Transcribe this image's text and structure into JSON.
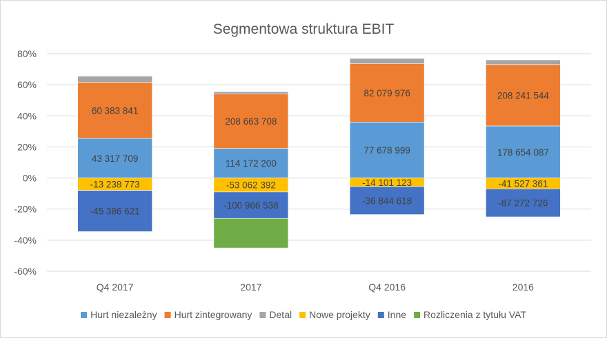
{
  "chart_data": {
    "type": "bar",
    "stacked": true,
    "title": "Segmentowa struktura EBIT",
    "xlabel": "",
    "ylabel": "",
    "categories": [
      "Q4 2017",
      "2017",
      "Q4 2016",
      "2016"
    ],
    "y_ticks": [
      "80%",
      "60%",
      "40%",
      "20%",
      "0%",
      "-20%",
      "-40%",
      "-60%"
    ],
    "ylim": [
      -0.6,
      0.8
    ],
    "grid": true,
    "legend_position": "bottom",
    "series": [
      {
        "name": "Hurt niezależny",
        "color": "#5B9BD5",
        "values": [
          0.255,
          0.19,
          0.36,
          0.335
        ],
        "labels": [
          "43 317 709",
          "114 172 200",
          "77 678 999",
          "178 654 087"
        ]
      },
      {
        "name": "Hurt zintegrowany",
        "color": "#ED7D31",
        "values": [
          0.36,
          0.35,
          0.375,
          0.395
        ],
        "labels": [
          "60 383 841",
          "208 663 708",
          "82 079 976",
          "208 241 544"
        ]
      },
      {
        "name": "Detal",
        "color": "#A5A5A5",
        "values": [
          0.04,
          0.015,
          0.035,
          0.03
        ],
        "labels": [
          "",
          "",
          "",
          ""
        ]
      },
      {
        "name": "Nowe projekty",
        "color": "#FFC000",
        "values": [
          -0.08,
          -0.09,
          -0.055,
          -0.07
        ],
        "labels": [
          "-13 238 773",
          "-53 062 392",
          "-14 101 123",
          "-41 527 361"
        ]
      },
      {
        "name": "Inne",
        "color": "#4472C4",
        "values": [
          -0.265,
          -0.17,
          -0.18,
          -0.18
        ],
        "labels": [
          "-45 386 621",
          "-100 966 538",
          "-36 844 618",
          "-87 272 726"
        ]
      },
      {
        "name": "Rozliczenia z tytułu VAT",
        "color": "#70AD47",
        "values": [
          0,
          -0.19,
          0,
          0
        ],
        "labels": [
          "",
          "",
          "",
          ""
        ]
      }
    ]
  }
}
